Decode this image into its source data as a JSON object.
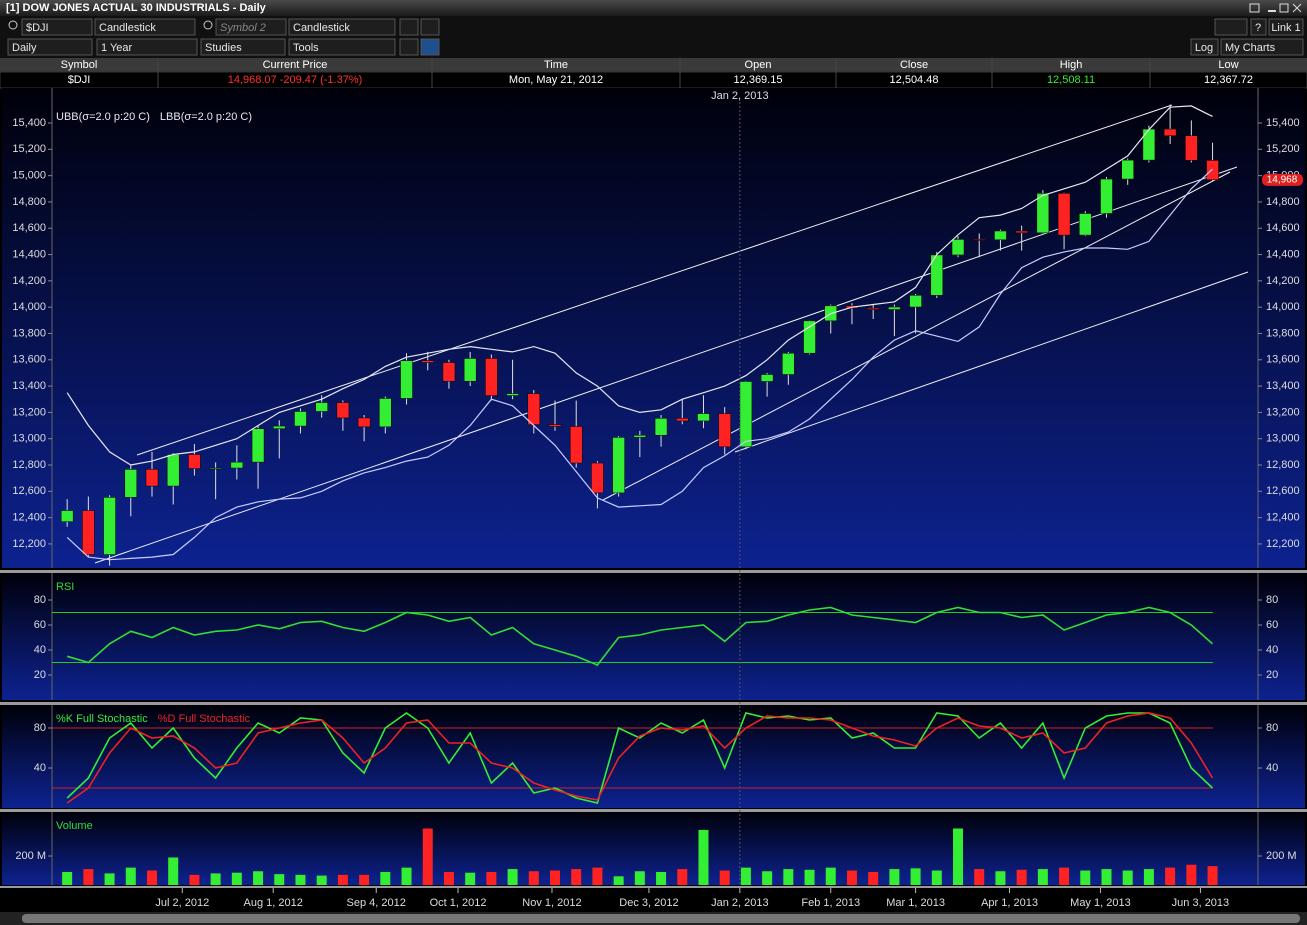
{
  "header": {
    "title": "[1] DOW JONES ACTUAL 30 INDUSTRIALS - Daily"
  },
  "toolbar": {
    "symbol": "$DJI",
    "chart_style": "Candlestick",
    "symbol2": "Symbol 2",
    "chart_style2": "Candlestick",
    "period": "Daily",
    "range": "1 Year",
    "studies": "Studies",
    "tools": "Tools",
    "help": "?",
    "link": "Link 1",
    "log": "Log",
    "my_charts": "My Charts"
  },
  "quote_table": {
    "columns": [
      "Symbol",
      "Current Price",
      "Time",
      "Open",
      "Close",
      "High",
      "Low"
    ],
    "row": [
      "$DJI",
      "14,968.07  -209.47  (-1.37%)",
      "Mon, May 21, 2012",
      "12,369.15",
      "12,504.48",
      "12,508.11",
      "12,367.72"
    ]
  },
  "chart_data": [
    {
      "type": "candlestick",
      "up_color": "#33ee33",
      "down_color": "#ff2222",
      "x": [
        "2012-05-25",
        "2012-06-01",
        "2012-06-08",
        "2012-06-15",
        "2012-06-22",
        "2012-06-29",
        "2012-07-06",
        "2012-07-13",
        "2012-07-20",
        "2012-07-27",
        "2012-08-03",
        "2012-08-10",
        "2012-08-17",
        "2012-08-24",
        "2012-08-31",
        "2012-09-07",
        "2012-09-14",
        "2012-09-21",
        "2012-09-28",
        "2012-10-05",
        "2012-10-12",
        "2012-10-19",
        "2012-10-26",
        "2012-11-02",
        "2012-11-09",
        "2012-11-16",
        "2012-11-23",
        "2012-11-30",
        "2012-12-07",
        "2012-12-14",
        "2012-12-21",
        "2012-12-28",
        "2013-01-04",
        "2013-01-11",
        "2013-01-18",
        "2013-01-25",
        "2013-02-01",
        "2013-02-08",
        "2013-02-15",
        "2013-02-22",
        "2013-03-01",
        "2013-03-08",
        "2013-03-15",
        "2013-03-22",
        "2013-03-29",
        "2013-04-05",
        "2013-04-12",
        "2013-04-19",
        "2013-04-26",
        "2013-05-03",
        "2013-05-10",
        "2013-05-17",
        "2013-05-24",
        "2013-05-31",
        "2013-06-07"
      ],
      "open": [
        12369,
        12454,
        12119,
        12554,
        12767,
        12640,
        12880,
        12773,
        12777,
        12822,
        13076,
        13096,
        13207,
        13275,
        13158,
        13090,
        13306,
        13593,
        13579,
        13437,
        13610,
        13328,
        13343,
        13107,
        13093,
        12815,
        12588,
        13010,
        13026,
        13155,
        13135,
        13191,
        12938,
        13435,
        13488,
        13650,
        13896,
        14010,
        13993,
        13982,
        14001,
        14090,
        14397,
        14515,
        14512,
        14579,
        14565,
        14865,
        14548,
        14712,
        14974,
        15118,
        15354,
        15303,
        15116
      ],
      "high": [
        12540,
        12560,
        12570,
        12800,
        12900,
        12890,
        12960,
        12820,
        12950,
        13100,
        13140,
        13230,
        13330,
        13290,
        13180,
        13320,
        13650,
        13660,
        13600,
        13660,
        13640,
        13600,
        13370,
        13290,
        13290,
        12830,
        13020,
        13060,
        13180,
        13300,
        13330,
        13240,
        13440,
        13500,
        13660,
        13900,
        14020,
        14030,
        14020,
        14020,
        14100,
        14420,
        14540,
        14560,
        14590,
        14620,
        14890,
        14870,
        14730,
        14990,
        15130,
        15380,
        15540,
        15420,
        15250
      ],
      "low": [
        12330,
        12100,
        12035,
        12410,
        12560,
        12500,
        12720,
        12540,
        12690,
        12620,
        12850,
        13040,
        13160,
        13060,
        12980,
        13040,
        13260,
        13520,
        13380,
        13400,
        13290,
        13300,
        13040,
        13060,
        12780,
        12470,
        12560,
        12860,
        12940,
        13110,
        13080,
        12880,
        12920,
        13320,
        13410,
        13640,
        13800,
        13870,
        13910,
        13780,
        13800,
        14070,
        14380,
        14380,
        14430,
        14430,
        14560,
        14440,
        14540,
        14680,
        14930,
        15100,
        15240,
        15100,
        14960
      ],
      "close": [
        12454,
        12119,
        12554,
        12767,
        12640,
        12880,
        12773,
        12777,
        12822,
        13076,
        13096,
        13207,
        13275,
        13158,
        13090,
        13306,
        13593,
        13579,
        13437,
        13610,
        13328,
        13343,
        13107,
        13093,
        12815,
        12588,
        13010,
        13026,
        13155,
        13135,
        13191,
        12938,
        13435,
        13488,
        13650,
        13896,
        14010,
        13993,
        13982,
        14001,
        14090,
        14397,
        14515,
        14512,
        14579,
        14565,
        14865,
        14548,
        14712,
        14974,
        15118,
        15354,
        15303,
        15116,
        14968
      ],
      "series": [
        {
          "name": "UBB(σ=2.0 p:20 C)",
          "color": "#e8e8f0",
          "values": [
            13350,
            13100,
            12900,
            12800,
            12830,
            12880,
            12900,
            12950,
            13000,
            13100,
            13200,
            13250,
            13300,
            13380,
            13450,
            13550,
            13620,
            13650,
            13680,
            13700,
            13680,
            13660,
            13700,
            13650,
            13500,
            13400,
            13250,
            13200,
            13220,
            13300,
            13350,
            13400,
            13480,
            13600,
            13750,
            13850,
            13950,
            14000,
            14020,
            14040,
            14150,
            14400,
            14550,
            14680,
            14700,
            14750,
            14850,
            14900,
            14950,
            15050,
            15150,
            15350,
            15520,
            15530,
            15450
          ]
        },
        {
          "name": "LBB(σ=2.0 p:20 C)",
          "color": "#c8ccff",
          "values": [
            12250,
            12100,
            12080,
            12090,
            12100,
            12120,
            12250,
            12400,
            12480,
            12520,
            12540,
            12550,
            12600,
            12680,
            12740,
            12780,
            12830,
            12860,
            12950,
            13100,
            13300,
            13250,
            13100,
            12950,
            12750,
            12550,
            12480,
            12490,
            12500,
            12600,
            12780,
            12870,
            12980,
            13000,
            13050,
            13150,
            13300,
            13450,
            13620,
            13750,
            13820,
            13780,
            13740,
            13850,
            14100,
            14300,
            14380,
            14420,
            14450,
            14450,
            14440,
            14500,
            14700,
            14900,
            15050
          ]
        }
      ],
      "xlim": [
        "2012-05-20",
        "2013-06-22"
      ],
      "xticks": [
        {
          "value": "2012-07-02",
          "label": "Jul 2, 2012"
        },
        {
          "value": "2012-08-01",
          "label": "Aug 1, 2012"
        },
        {
          "value": "2012-09-04",
          "label": "Sep 4, 2012"
        },
        {
          "value": "2012-10-01",
          "label": "Oct 1, 2012"
        },
        {
          "value": "2012-11-01",
          "label": "Nov 1, 2012"
        },
        {
          "value": "2012-12-03",
          "label": "Dec 3, 2012"
        },
        {
          "value": "2013-01-02",
          "label": "Jan 2, 2013"
        },
        {
          "value": "2013-02-01",
          "label": "Feb 1, 2013"
        },
        {
          "value": "2013-03-01",
          "label": "Mar 1, 2013"
        },
        {
          "value": "2013-04-01",
          "label": "Apr 1, 2013"
        },
        {
          "value": "2013-05-01",
          "label": "May 1, 2013"
        },
        {
          "value": "2013-06-03",
          "label": "Jun 3, 2013"
        }
      ],
      "ylim": [
        12017,
        15575
      ],
      "yticks": [
        {
          "value": 12200,
          "label": "12,200"
        },
        {
          "value": 12400,
          "label": "12,400"
        },
        {
          "value": 12600,
          "label": "12,600"
        },
        {
          "value": 12800,
          "label": "12,800"
        },
        {
          "value": 13000,
          "label": "13,000"
        },
        {
          "value": 13200,
          "label": "13,200"
        },
        {
          "value": 13400,
          "label": "13,400"
        },
        {
          "value": 13600,
          "label": "13,600"
        },
        {
          "value": 13800,
          "label": "13,800"
        },
        {
          "value": 14000,
          "label": "14,000"
        },
        {
          "value": 14200,
          "label": "14,200"
        },
        {
          "value": 14400,
          "label": "14,400"
        },
        {
          "value": 14600,
          "label": "14,600"
        },
        {
          "value": 14800,
          "label": "14,800"
        },
        {
          "value": 15000,
          "label": "15,000"
        },
        {
          "value": 15200,
          "label": "15,200"
        },
        {
          "value": 15400,
          "label": "15,400"
        }
      ],
      "crosshair": {
        "value": "2013-01-02",
        "label": "Jan 2, 2013"
      },
      "last_price": {
        "value": 14968,
        "label": "14,968"
      }
    },
    {
      "type": "line",
      "series": [
        {
          "name": "RSI",
          "color": "#33dd33",
          "values": [
            35,
            30,
            45,
            55,
            50,
            58,
            52,
            55,
            56,
            60,
            57,
            62,
            63,
            58,
            55,
            62,
            70,
            68,
            63,
            66,
            52,
            58,
            45,
            40,
            35,
            28,
            50,
            52,
            56,
            58,
            60,
            47,
            62,
            63,
            68,
            72,
            74,
            68,
            66,
            64,
            62,
            70,
            74,
            70,
            70,
            66,
            68,
            56,
            62,
            68,
            70,
            74,
            70,
            60,
            45
          ]
        }
      ],
      "ylim": [
        0,
        100
      ],
      "yticks": [
        20,
        40,
        60,
        80
      ],
      "reference_lines": [
        70,
        30
      ],
      "reference_color": "#22cc22"
    },
    {
      "type": "line",
      "series": [
        {
          "name": "%K Full Stochastic",
          "color": "#33ee33",
          "values": [
            10,
            30,
            70,
            85,
            60,
            80,
            50,
            30,
            60,
            85,
            75,
            90,
            88,
            55,
            35,
            80,
            95,
            80,
            45,
            75,
            25,
            45,
            15,
            20,
            10,
            5,
            80,
            70,
            85,
            75,
            88,
            40,
            95,
            90,
            92,
            88,
            90,
            70,
            75,
            60,
            60,
            95,
            92,
            70,
            85,
            60,
            85,
            30,
            80,
            92,
            95,
            95,
            85,
            40,
            20
          ]
        },
        {
          "name": "%D Full Stochastic",
          "color": "#ee2222",
          "values": [
            5,
            20,
            55,
            80,
            70,
            72,
            60,
            40,
            45,
            75,
            80,
            85,
            88,
            70,
            45,
            60,
            85,
            88,
            65,
            65,
            45,
            40,
            25,
            18,
            12,
            8,
            50,
            72,
            80,
            78,
            82,
            60,
            80,
            92,
            90,
            90,
            88,
            80,
            72,
            68,
            62,
            80,
            90,
            82,
            80,
            70,
            75,
            55,
            60,
            85,
            92,
            95,
            90,
            65,
            30
          ]
        }
      ],
      "ylim": [
        0,
        101
      ],
      "yticks": [
        40,
        80
      ],
      "reference_lines": [
        80,
        20
      ],
      "reference_color": "#cc2222"
    },
    {
      "type": "bar",
      "series": [
        {
          "name": "Volume",
          "color": "#33dd33",
          "values": [
            90,
            110,
            80,
            120,
            100,
            190,
            70,
            80,
            85,
            95,
            75,
            70,
            65,
            70,
            70,
            90,
            120,
            390,
            90,
            85,
            90,
            110,
            95,
            100,
            110,
            120,
            60,
            95,
            90,
            110,
            380,
            100,
            120,
            95,
            110,
            105,
            120,
            100,
            90,
            110,
            115,
            100,
            390,
            110,
            95,
            105,
            110,
            120,
            100,
            110,
            100,
            110,
            120,
            140,
            130
          ]
        }
      ],
      "ylim": [
        0,
        490
      ],
      "yticks": [
        {
          "value": 200,
          "label": "200 M"
        }
      ]
    }
  ]
}
